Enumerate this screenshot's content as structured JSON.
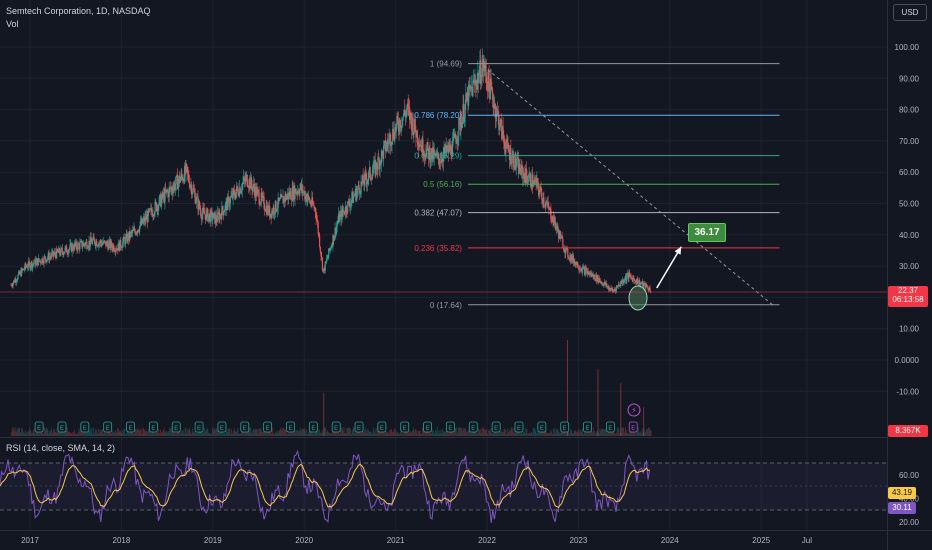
{
  "header": {
    "title": "Semtech Corporation, 1D, NASDAQ",
    "volume_label": "Vol",
    "currency": "USD",
    "price_tag": "22.37",
    "countdown": "06:13:58",
    "volume_tag": "8.367K"
  },
  "callout": {
    "value": "36.17"
  },
  "rsi": {
    "label": "RSI (14, close, SMA, 14, 2)",
    "value": "43.19",
    "sma_value": "30.11",
    "ticks": [
      "60.00",
      "40.00",
      "20.00"
    ],
    "upper": 70,
    "lower": 30
  },
  "colors": {
    "background": "#131722",
    "up": "#26a69a",
    "down": "#ef5350",
    "rsi_line": "#7e57c2",
    "rsi_sma": "#f7c948",
    "price_tag": "#f23645",
    "callout": "#3d8b3d"
  },
  "chart_data": {
    "type": "candlestick",
    "title": "Semtech Corporation, 1D, NASDAQ",
    "y_ticks": [
      "100.00",
      "90.00",
      "80.00",
      "70.00",
      "60.00",
      "50.00",
      "40.00",
      "30.00",
      "20.00",
      "10.00",
      "0.0000",
      "-10.00"
    ],
    "x_ticks": [
      "2017",
      "2018",
      "2019",
      "2020",
      "2021",
      "2022",
      "2023",
      "2024",
      "2025",
      "Jul"
    ],
    "fib_levels": [
      {
        "label": "1 (94.69)",
        "value": 94.69,
        "color": "#9598a1"
      },
      {
        "label": "0.786 (78.20)",
        "value": 78.2,
        "color": "#64b5f6"
      },
      {
        "label": "0.618 (65.29)",
        "value": 65.29,
        "color": "#26a69a"
      },
      {
        "label": "0.5 (56.16)",
        "value": 56.16,
        "color": "#4caf50"
      },
      {
        "label": "0.382 (47.07)",
        "value": 47.07,
        "color": "#b2b5be"
      },
      {
        "label": "0.236 (35.82)",
        "value": 35.82,
        "color": "#f23645"
      },
      {
        "label": "0 (17.64)",
        "value": 17.64,
        "color": "#9598a1"
      }
    ],
    "price_path": [
      [
        "2016-10",
        24
      ],
      [
        "2016-12",
        30
      ],
      [
        "2017-03",
        33
      ],
      [
        "2017-06",
        36
      ],
      [
        "2017-09",
        38
      ],
      [
        "2017-12",
        36
      ],
      [
        "2018-03",
        43
      ],
      [
        "2018-06",
        52
      ],
      [
        "2018-09",
        60
      ],
      [
        "2018-11",
        47
      ],
      [
        "2019-01",
        45
      ],
      [
        "2019-03",
        52
      ],
      [
        "2019-05",
        58
      ],
      [
        "2019-08",
        47
      ],
      [
        "2019-10",
        52
      ],
      [
        "2019-12",
        55
      ],
      [
        "2020-02",
        48
      ],
      [
        "2020-03",
        28
      ],
      [
        "2020-05",
        45
      ],
      [
        "2020-08",
        56
      ],
      [
        "2020-10",
        62
      ],
      [
        "2020-12",
        72
      ],
      [
        "2021-02",
        80
      ],
      [
        "2021-04",
        68
      ],
      [
        "2021-06",
        64
      ],
      [
        "2021-08",
        68
      ],
      [
        "2021-10",
        84
      ],
      [
        "2021-12",
        94
      ],
      [
        "2022-01",
        86
      ],
      [
        "2022-03",
        68
      ],
      [
        "2022-05",
        60
      ],
      [
        "2022-07",
        56
      ],
      [
        "2022-09",
        46
      ],
      [
        "2022-11",
        34
      ],
      [
        "2023-01",
        29
      ],
      [
        "2023-03",
        26
      ],
      [
        "2023-05",
        22
      ],
      [
        "2023-07",
        27
      ],
      [
        "2023-09",
        24
      ],
      [
        "2023-10",
        22.37
      ]
    ],
    "projection": {
      "from": [
        "2023-10",
        22.37
      ],
      "to": [
        "2024-02",
        36.17
      ],
      "target": 36.17
    },
    "trendline": {
      "from": [
        "2021-12",
        94
      ],
      "to": [
        "2025-02",
        17.64
      ]
    },
    "volume_spikes": [
      [
        "2020-03",
        18
      ],
      [
        "2022-11",
        40
      ],
      [
        "2023-03",
        28
      ],
      [
        "2023-06",
        22
      ],
      [
        "2023-09",
        12
      ]
    ],
    "ylim": [
      -10,
      100
    ],
    "grid": true,
    "legend": "none"
  }
}
